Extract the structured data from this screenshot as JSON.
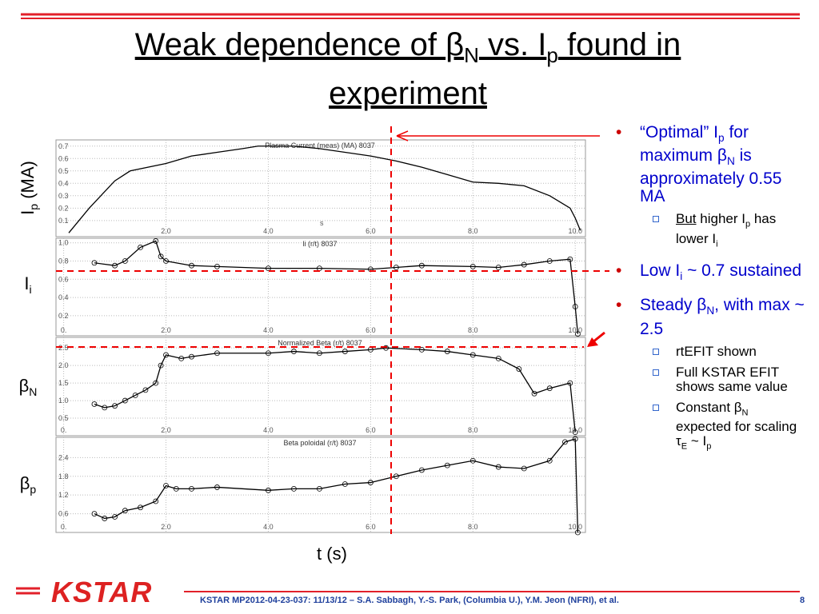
{
  "title": [
    {
      "text": "Weak dependence of "
    },
    {
      "text": "β"
    },
    {
      "text": "N",
      "sub": true
    },
    {
      "text": " vs. I"
    },
    {
      "text": "p",
      "sub": true
    },
    {
      "text": " found in experiment"
    }
  ],
  "bullets": [
    {
      "parts": [
        {
          "text": "“Optimal” I"
        },
        {
          "text": "p",
          "sub": true
        },
        {
          "text": " for maximum "
        },
        {
          "text": "β"
        },
        {
          "text": "N",
          "sub": true
        },
        {
          "text": " is approximately 0.55 MA"
        }
      ],
      "subs": [
        {
          "parts": [
            {
              "text": "But",
              "u": true
            },
            {
              "text": " higher I"
            },
            {
              "text": "p",
              "sub": true
            },
            {
              "text": " has lower I"
            },
            {
              "text": "i",
              "sub": true
            }
          ]
        }
      ]
    },
    {
      "parts": [
        {
          "text": "Low I"
        },
        {
          "text": "i",
          "sub": true
        },
        {
          "text": " ~ 0.7 sustained"
        }
      ],
      "subs": []
    },
    {
      "parts": [
        {
          "text": "Steady "
        },
        {
          "text": "β"
        },
        {
          "text": "N",
          "sub": true
        },
        {
          "text": ", with max ~ 2.5"
        }
      ],
      "subs": [
        {
          "parts": [
            {
              "text": "rtEFIT shown"
            }
          ]
        },
        {
          "parts": [
            {
              "text": "Full KSTAR EFIT shows same value"
            }
          ]
        },
        {
          "parts": [
            {
              "text": "Constant "
            },
            {
              "text": "β"
            },
            {
              "text": "N",
              "sub": true
            },
            {
              "text": " expected for scaling "
            },
            {
              "text": "τ"
            },
            {
              "text": "E",
              "sub": true
            },
            {
              "text": " ~ I"
            },
            {
              "text": "p",
              "sub": true
            }
          ]
        }
      ]
    }
  ],
  "xlabel": "t (s)",
  "logo": "KSTAR",
  "footer": "KSTAR MP2012-04-23-037: 11/13/12 – S.A. Sabbagh, Y.-S. Park, (Columbia U.), Y.M. Jeon (NFRI), et al.",
  "page": "8",
  "chart_data": [
    {
      "type": "line",
      "title": "Plasma Current (meas) (MA) 8037",
      "annotation": "s",
      "color": "#000000",
      "markers": false,
      "ylabel": [
        {
          "text": "I"
        },
        {
          "text": "p",
          "sub": true
        },
        {
          "text": " (MA)"
        }
      ],
      "xlim": [
        -0.15,
        10.2
      ],
      "ylim": [
        -0.03,
        0.75
      ],
      "xticks": [
        {
          "value": 2,
          "label": "2.0"
        },
        {
          "value": 4,
          "label": "4.0"
        },
        {
          "value": 6,
          "label": "6.0"
        },
        {
          "value": 8,
          "label": "8.0"
        },
        {
          "value": 10,
          "label": "10.0"
        }
      ],
      "yticks": [
        0.1,
        0.2,
        0.3,
        0.4,
        0.5,
        0.6,
        0.7
      ],
      "x": [
        0.1,
        0.5,
        1.0,
        1.3,
        2.0,
        2.5,
        3.0,
        3.5,
        3.8,
        4.5,
        5.0,
        5.5,
        6.0,
        6.5,
        7.0,
        7.5,
        8.0,
        8.5,
        9.0,
        9.5,
        9.9,
        10.0,
        10.1
      ],
      "values": [
        0.0,
        0.2,
        0.42,
        0.5,
        0.56,
        0.62,
        0.65,
        0.68,
        0.7,
        0.7,
        0.68,
        0.65,
        0.62,
        0.58,
        0.53,
        0.47,
        0.41,
        0.4,
        0.38,
        0.3,
        0.2,
        0.12,
        0.02
      ]
    },
    {
      "type": "line",
      "title": "li (r/t) 8037",
      "color": "#000000",
      "markers": true,
      "ylabel": [
        {
          "text": "I"
        },
        {
          "text": "i",
          "sub": true
        }
      ],
      "xlim": [
        -0.15,
        10.2
      ],
      "ylim": [
        -0.02,
        1.05
      ],
      "xticks": [
        {
          "value": 0,
          "label": "0."
        },
        {
          "value": 2,
          "label": "2.0"
        },
        {
          "value": 4,
          "label": "4.0"
        },
        {
          "value": 6,
          "label": "6.0"
        },
        {
          "value": 8,
          "label": "8.0"
        },
        {
          "value": 10,
          "label": "10.0"
        }
      ],
      "yticks": [
        0.2,
        0.4,
        0.6,
        0.8,
        {
          "value": 1,
          "label": "1.0"
        }
      ],
      "x": [
        0.6,
        1.0,
        1.2,
        1.5,
        1.8,
        1.9,
        2.0,
        2.5,
        3.0,
        4.0,
        5.0,
        6.0,
        6.5,
        7.0,
        8.0,
        8.5,
        9.0,
        9.5,
        9.9,
        10.0,
        10.05
      ],
      "values": [
        0.78,
        0.75,
        0.8,
        0.95,
        1.02,
        0.85,
        0.8,
        0.75,
        0.74,
        0.72,
        0.72,
        0.71,
        0.73,
        0.75,
        0.74,
        0.73,
        0.76,
        0.8,
        0.82,
        0.3,
        0.0
      ]
    },
    {
      "type": "line",
      "title": "Normalized Beta (r/t) 8037",
      "color": "#000000",
      "markers": true,
      "ylabel": [
        {
          "text": "β"
        },
        {
          "text": "N",
          "sub": true
        }
      ],
      "xlim": [
        -0.15,
        10.2
      ],
      "ylim": [
        0,
        2.8
      ],
      "xticks": [
        {
          "value": 0,
          "label": "0."
        },
        {
          "value": 2,
          "label": "2.0"
        },
        {
          "value": 4,
          "label": "4.0"
        },
        {
          "value": 6,
          "label": "6.0"
        },
        {
          "value": 8,
          "label": "8.0"
        },
        {
          "value": 10,
          "label": "10.0"
        }
      ],
      "yticks": [
        0.5,
        {
          "value": 1,
          "label": "1.0"
        },
        1.5,
        {
          "value": 2,
          "label": "2.0"
        },
        2.5
      ],
      "x": [
        0.6,
        0.8,
        1.0,
        1.2,
        1.4,
        1.6,
        1.8,
        1.9,
        2.0,
        2.3,
        2.5,
        3.0,
        4.0,
        4.5,
        5.0,
        5.5,
        6.0,
        6.3,
        7.0,
        7.5,
        8.0,
        8.5,
        8.9,
        9.2,
        9.5,
        9.9,
        10.0
      ],
      "values": [
        0.9,
        0.8,
        0.85,
        1.0,
        1.15,
        1.3,
        1.5,
        2.0,
        2.3,
        2.2,
        2.25,
        2.35,
        2.35,
        2.4,
        2.35,
        2.4,
        2.45,
        2.5,
        2.45,
        2.4,
        2.3,
        2.2,
        1.9,
        1.2,
        1.35,
        1.5,
        0.1
      ]
    },
    {
      "type": "line",
      "title": "Beta poloidal (r/t) 8037",
      "color": "#000000",
      "markers": true,
      "ylabel": [
        {
          "text": "β"
        },
        {
          "text": "p",
          "sub": true
        }
      ],
      "xlim": [
        -0.15,
        10.2
      ],
      "ylim": [
        0,
        3.05
      ],
      "xticks": [
        {
          "value": 0,
          "label": "0."
        },
        {
          "value": 2,
          "label": "2.0"
        },
        {
          "value": 4,
          "label": "4.0"
        },
        {
          "value": 6,
          "label": "6.0"
        },
        {
          "value": 8,
          "label": "8.0"
        },
        {
          "value": 10,
          "label": "10.0"
        }
      ],
      "yticks": [
        0.6,
        1.2,
        1.8,
        2.4
      ],
      "x": [
        0.6,
        0.8,
        1.0,
        1.2,
        1.5,
        1.8,
        2.0,
        2.2,
        2.5,
        3.0,
        4.0,
        4.5,
        5.0,
        5.5,
        6.0,
        6.5,
        7.0,
        7.5,
        8.0,
        8.5,
        9.0,
        9.5,
        9.8,
        10.0,
        10.05
      ],
      "values": [
        0.6,
        0.45,
        0.5,
        0.7,
        0.8,
        1.0,
        1.5,
        1.4,
        1.4,
        1.45,
        1.35,
        1.4,
        1.4,
        1.55,
        1.6,
        1.8,
        2.0,
        2.15,
        2.3,
        2.1,
        2.05,
        2.3,
        2.9,
        3.0,
        0.0
      ]
    }
  ]
}
